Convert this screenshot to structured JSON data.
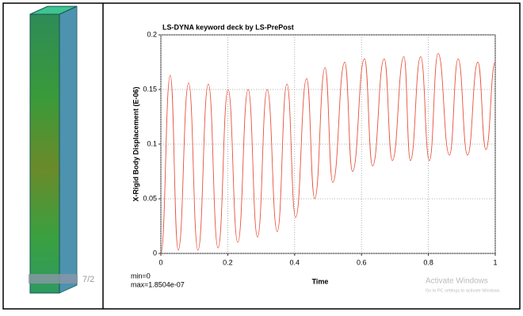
{
  "chart_data": {
    "type": "line",
    "title": "LS-DYNA keyword deck by LS-PrePost",
    "xlabel": "Time",
    "ylabel": "X-Rigid Body Displacement (E-06)",
    "xlim": [
      0,
      1
    ],
    "ylim": [
      0,
      0.2
    ],
    "xticks": [
      0,
      0.2,
      0.4,
      0.6,
      0.8,
      1
    ],
    "yticks": [
      0,
      0.05,
      0.1,
      0.15,
      0.2
    ],
    "grid": true,
    "series": [
      {
        "color": "#e8503c",
        "x": [
          0,
          0.028,
          0.052,
          0.083,
          0.111,
          0.142,
          0.171,
          0.201,
          0.23,
          0.261,
          0.289,
          0.318,
          0.348,
          0.377,
          0.403,
          0.436,
          0.46,
          0.491,
          0.514,
          0.55,
          0.573,
          0.609,
          0.633,
          0.668,
          0.692,
          0.727,
          0.746,
          0.777,
          0.803,
          0.829,
          0.863,
          0.889,
          0.917,
          0.948,
          0.972,
          1
        ],
        "values": [
          0,
          0.163,
          0.003,
          0.156,
          0.003,
          0.155,
          0.005,
          0.15,
          0.01,
          0.15,
          0.015,
          0.15,
          0.02,
          0.155,
          0.033,
          0.16,
          0.05,
          0.17,
          0.065,
          0.175,
          0.075,
          0.178,
          0.08,
          0.178,
          0.085,
          0.18,
          0.085,
          0.18,
          0.085,
          0.183,
          0.09,
          0.178,
          0.09,
          0.175,
          0.095,
          0.175
        ]
      }
    ],
    "annotations": [
      "min=0",
      "max=1.8504e-07"
    ]
  },
  "overlay": {
    "line1": "Activate Windows",
    "line2": "Go to PC settings to activate Windows."
  },
  "viewer": {
    "frame": "7/2"
  }
}
